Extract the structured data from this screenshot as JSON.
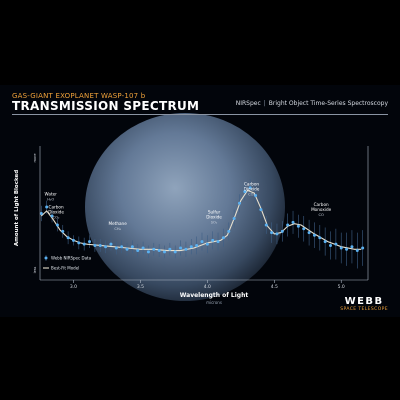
{
  "header": {
    "kicker": "GAS-GIANT EXOPLANET WASP-107 b",
    "title": "TRANSMISSION SPECTRUM",
    "instrument": "NIRSpec",
    "mode": "Bright Object Time-Series Spectroscopy"
  },
  "logo": {
    "main": "WEBB",
    "sub": "SPACE TELESCOPE"
  },
  "chart_data": {
    "type": "scatter",
    "xlabel": "Wavelength of Light",
    "xunit": "microns",
    "ylabel": "Amount of Light Blocked",
    "xlim": [
      2.75,
      5.2
    ],
    "ylim": [
      0,
      1
    ],
    "xticks": [
      "3.0",
      "3.5",
      "4.0",
      "4.5",
      "5.0"
    ],
    "yticks": {
      "high": "more",
      "low": "less"
    },
    "grid": false,
    "legend": "bottom-left",
    "legend_entries": [
      "Webb NIRSpec Data",
      "Best-Fit Model"
    ],
    "colors": {
      "data": "#5ab0f0",
      "model": "#e8e1cf",
      "error": "#3e5f86"
    },
    "annotations": [
      {
        "name": "Water",
        "formula": "H₂O",
        "x": 2.83,
        "y": 0.66
      },
      {
        "name": "Carbon Dioxide",
        "formula": "CO₂",
        "x": 2.87,
        "y": 0.56
      },
      {
        "name": "Methane",
        "formula": "CH₄",
        "x": 3.33,
        "y": 0.43
      },
      {
        "name": "Sulfur Dioxide",
        "formula": "SO₂",
        "x": 4.05,
        "y": 0.52
      },
      {
        "name": "Carbon Dioxide",
        "formula": "CO₂",
        "x": 4.33,
        "y": 0.74
      },
      {
        "name": "Carbon Monoxide",
        "formula": "CO",
        "x": 4.85,
        "y": 0.58
      }
    ],
    "model": {
      "x": [
        2.76,
        2.8,
        2.85,
        2.9,
        2.95,
        3.0,
        3.05,
        3.1,
        3.2,
        3.3,
        3.4,
        3.5,
        3.6,
        3.7,
        3.8,
        3.9,
        4.0,
        4.05,
        4.1,
        4.15,
        4.2,
        4.25,
        4.3,
        4.35,
        4.4,
        4.45,
        4.5,
        4.55,
        4.6,
        4.65,
        4.7,
        4.8,
        4.9,
        5.0,
        5.1,
        5.15
      ],
      "y": [
        0.5,
        0.54,
        0.47,
        0.39,
        0.34,
        0.31,
        0.29,
        0.28,
        0.27,
        0.26,
        0.25,
        0.24,
        0.24,
        0.23,
        0.23,
        0.25,
        0.29,
        0.3,
        0.31,
        0.35,
        0.48,
        0.62,
        0.7,
        0.68,
        0.56,
        0.42,
        0.36,
        0.37,
        0.42,
        0.44,
        0.43,
        0.36,
        0.3,
        0.26,
        0.24,
        0.24
      ]
    },
    "series": [
      {
        "name": "Webb NIRSpec Data",
        "x": [
          2.76,
          2.8,
          2.84,
          2.88,
          2.92,
          2.96,
          3.0,
          3.04,
          3.08,
          3.12,
          3.16,
          3.2,
          3.24,
          3.28,
          3.32,
          3.36,
          3.4,
          3.44,
          3.48,
          3.52,
          3.56,
          3.6,
          3.64,
          3.68,
          3.72,
          3.76,
          3.8,
          3.84,
          3.88,
          3.92,
          3.96,
          4.0,
          4.04,
          4.08,
          4.12,
          4.16,
          4.2,
          4.24,
          4.28,
          4.32,
          4.36,
          4.4,
          4.44,
          4.48,
          4.52,
          4.56,
          4.6,
          4.64,
          4.68,
          4.72,
          4.76,
          4.8,
          4.84,
          4.88,
          4.92,
          4.96,
          5.0,
          5.04,
          5.08,
          5.12,
          5.16
        ],
        "y": [
          0.52,
          0.57,
          0.5,
          0.43,
          0.38,
          0.33,
          0.31,
          0.29,
          0.28,
          0.3,
          0.27,
          0.27,
          0.26,
          0.28,
          0.25,
          0.26,
          0.24,
          0.26,
          0.23,
          0.25,
          0.22,
          0.24,
          0.23,
          0.22,
          0.24,
          0.22,
          0.25,
          0.24,
          0.26,
          0.27,
          0.3,
          0.28,
          0.31,
          0.3,
          0.33,
          0.38,
          0.48,
          0.6,
          0.69,
          0.72,
          0.66,
          0.55,
          0.43,
          0.37,
          0.36,
          0.38,
          0.43,
          0.45,
          0.42,
          0.4,
          0.37,
          0.35,
          0.33,
          0.3,
          0.27,
          0.28,
          0.25,
          0.24,
          0.26,
          0.23,
          0.25
        ],
        "err": [
          0.06,
          0.05,
          0.05,
          0.05,
          0.05,
          0.05,
          0.04,
          0.05,
          0.05,
          0.05,
          0.05,
          0.05,
          0.05,
          0.05,
          0.05,
          0.05,
          0.05,
          0.05,
          0.05,
          0.05,
          0.05,
          0.05,
          0.05,
          0.05,
          0.05,
          0.05,
          0.06,
          0.06,
          0.06,
          0.07,
          0.07,
          0.07,
          0.07,
          0.07,
          0.07,
          0.07,
          0.07,
          0.07,
          0.07,
          0.07,
          0.07,
          0.07,
          0.07,
          0.08,
          0.08,
          0.08,
          0.09,
          0.09,
          0.09,
          0.1,
          0.1,
          0.1,
          0.1,
          0.11,
          0.11,
          0.12,
          0.12,
          0.13,
          0.13,
          0.14,
          0.14
        ]
      }
    ]
  }
}
